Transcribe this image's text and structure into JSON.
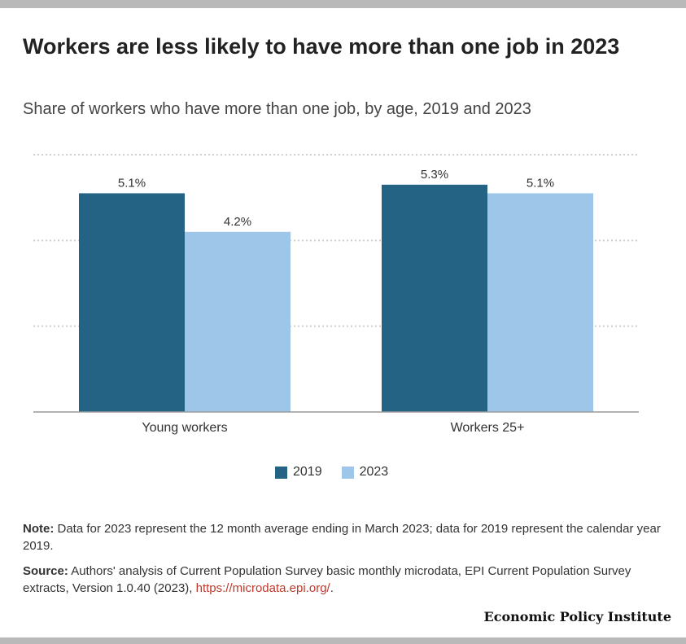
{
  "header": {
    "title": "Workers are less likely to have more than one job in 2023",
    "subtitle": "Share of workers who have more than one job, by age, 2019 and 2023"
  },
  "chart_data": {
    "type": "bar",
    "categories": [
      "Young workers",
      "Workers 25+"
    ],
    "series": [
      {
        "name": "2019",
        "values": [
          5.1,
          5.3
        ],
        "labels": [
          "5.1%",
          "5.3%"
        ],
        "color": "#256385"
      },
      {
        "name": "2023",
        "values": [
          4.2,
          5.1
        ],
        "labels": [
          "4.2%",
          "5.1%"
        ],
        "color": "#9dc6e8"
      }
    ],
    "ylim": [
      0,
      6
    ],
    "grid": true,
    "legend_position": "bottom-center"
  },
  "legend": {
    "items": [
      {
        "label": "2019",
        "color": "#256385"
      },
      {
        "label": "2023",
        "color": "#9dc6e8"
      }
    ]
  },
  "notes": {
    "note_label": "Note:",
    "note_text": " Data for 2023 represent the 12 month average ending in March 2023; data for 2019 represent the calendar year 2019.",
    "source_label": "Source:",
    "source_text": " Authors' analysis of Current Population Survey basic monthly microdata, EPI Current Population Survey extracts, Version 1.0.40 (2023), ",
    "source_link": "https://microdata.epi.org/",
    "source_end": "."
  },
  "brand": {
    "name": "Economic Policy Institute"
  }
}
